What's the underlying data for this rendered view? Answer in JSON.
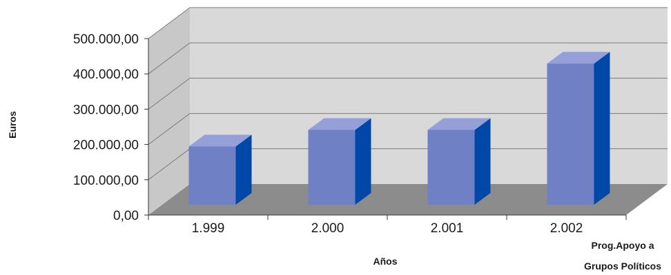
{
  "chart_data": {
    "type": "bar",
    "style": "3d",
    "categories": [
      "1.999",
      "2.000",
      "2.001",
      "2.002"
    ],
    "values": [
      165000,
      212000,
      212000,
      400000
    ],
    "ylabel": "Euros",
    "xlabel": "Años",
    "ylim": [
      0,
      500000
    ],
    "yticks": [
      "0,00",
      "100.000,00",
      "200.000,00",
      "300.000,00",
      "400.000,00",
      "500.000,00"
    ],
    "grid": true,
    "annotation": [
      "Prog.Apoyo a",
      "Grupos Políticos"
    ],
    "colors": {
      "bar_front": "#7080c4",
      "bar_top": "#95a0d8",
      "bar_side": "#0048a8",
      "back_wall": "#d9d9d9",
      "side_wall": "#c8c8c8",
      "floor": "#8c8c8c",
      "gridline": "#7a7a7a"
    }
  }
}
